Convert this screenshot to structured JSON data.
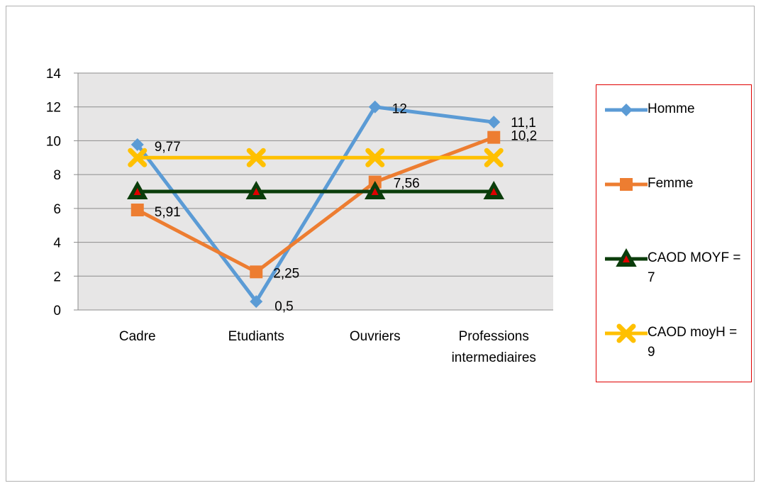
{
  "chart_data": {
    "type": "line",
    "categories": [
      "Cadre",
      "Etudiants",
      "Ouvriers",
      "Professions intermediaires"
    ],
    "ylim": [
      0,
      14
    ],
    "yticks": [
      0,
      2,
      4,
      6,
      8,
      10,
      12,
      14
    ],
    "grid": true,
    "legend_position": "right",
    "series": [
      {
        "name": "Homme",
        "values": [
          9.77,
          0.5,
          12,
          11.1
        ],
        "labels": [
          "9,77",
          "0,5",
          "12",
          "11,1"
        ],
        "color": "#5b9bd5",
        "marker": "diamond"
      },
      {
        "name": "Femme",
        "values": [
          5.91,
          2.25,
          7.56,
          10.2
        ],
        "labels": [
          "5,91",
          "2,25",
          "7,56",
          "10,2"
        ],
        "color": "#ed7d31",
        "marker": "square"
      },
      {
        "name": "CAOD MOYF = 7",
        "values": [
          7,
          7,
          7,
          7
        ],
        "labels": [
          "",
          "",
          "",
          ""
        ],
        "color": "#0b3d0b",
        "marker": "triangle"
      },
      {
        "name": "CAOD moyH = 9",
        "values": [
          9,
          9,
          9,
          9
        ],
        "labels": [
          "",
          "",
          "",
          ""
        ],
        "color": "#ffc000",
        "marker": "x"
      }
    ]
  }
}
